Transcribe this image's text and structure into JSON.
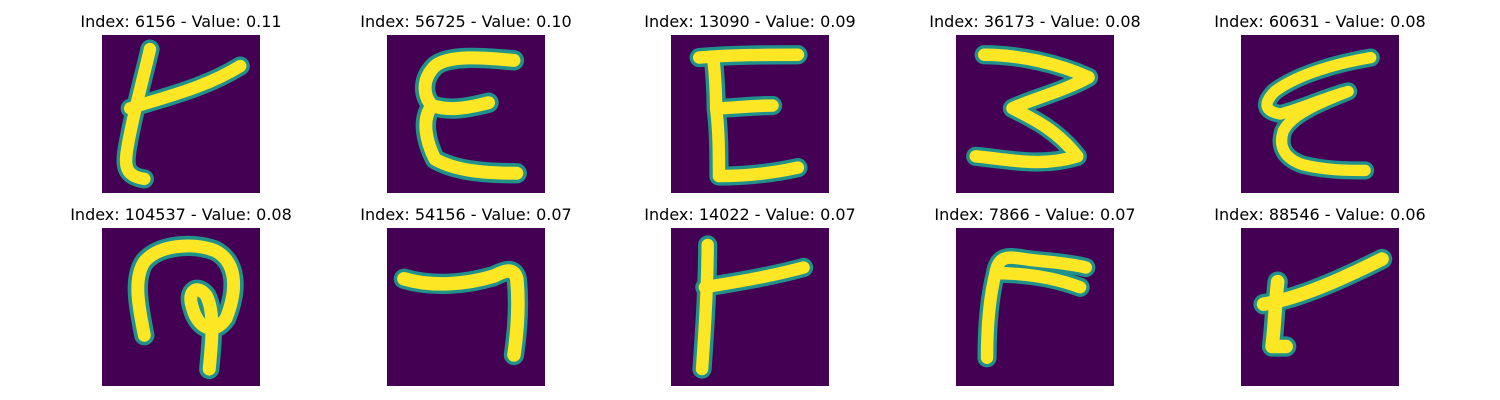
{
  "figure": {
    "background": "#ffffff",
    "colormap": {
      "low": "#440154",
      "mid": "#21918c",
      "high": "#fde725"
    },
    "panels": [
      {
        "index": "6156",
        "value": "0.11",
        "title": "Index: 6156 - Value: 0.11",
        "glyph": "character-6156"
      },
      {
        "index": "56725",
        "value": "0.10",
        "title": "Index: 56725 - Value: 0.10",
        "glyph": "character-56725"
      },
      {
        "index": "13090",
        "value": "0.09",
        "title": "Index: 13090 - Value: 0.09",
        "glyph": "character-13090"
      },
      {
        "index": "36173",
        "value": "0.08",
        "title": "Index: 36173 - Value: 0.08",
        "glyph": "character-36173"
      },
      {
        "index": "60631",
        "value": "0.08",
        "title": "Index: 60631 - Value: 0.08",
        "glyph": "character-60631"
      },
      {
        "index": "104537",
        "value": "0.08",
        "title": "Index: 104537 - Value: 0.08",
        "glyph": "character-104537"
      },
      {
        "index": "54156",
        "value": "0.07",
        "title": "Index: 54156 - Value: 0.07",
        "glyph": "character-54156"
      },
      {
        "index": "14022",
        "value": "0.07",
        "title": "Index: 14022 - Value: 0.07",
        "glyph": "character-14022"
      },
      {
        "index": "7866",
        "value": "0.07",
        "title": "Index: 7866 - Value: 0.07",
        "glyph": "character-7866"
      },
      {
        "index": "88546",
        "value": "0.06",
        "title": "Index: 88546 - Value: 0.06",
        "glyph": "character-88546"
      }
    ]
  }
}
